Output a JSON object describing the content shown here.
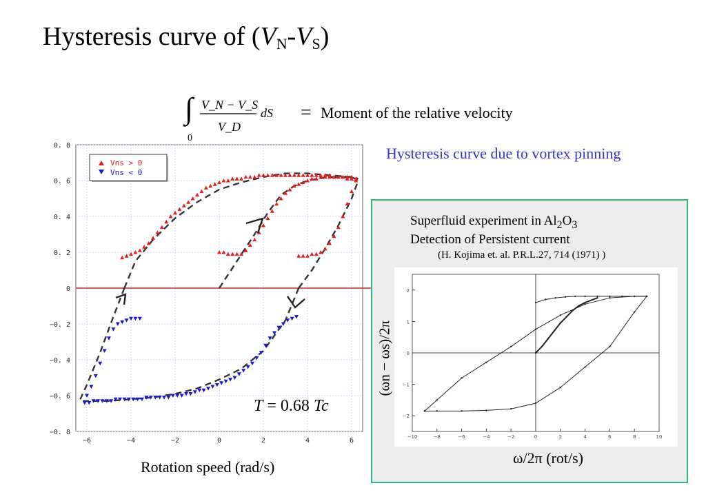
{
  "title": {
    "main": "Hysteresis curve of (",
    "v1": "V",
    "s1": "N",
    "dash": "-",
    "v2": "V",
    "s2": "S",
    "close": ")"
  },
  "formula": {
    "lower_limit": "0",
    "numerator": "V_N − V_S",
    "denominator": "V_D",
    "ds": "dS",
    "equals": "=",
    "text": "Moment of the relative velocity"
  },
  "subtitle": "Hysteresis curve due to vortex pinning",
  "temperature": {
    "var": "T",
    "eq": " = 0.68 ",
    "unit": "Tc"
  },
  "chart_data": [
    {
      "type": "scatter",
      "xlabel": "Rotation speed (rad/s)",
      "ylabel": "",
      "xlim": [
        -6.5,
        6.5
      ],
      "ylim": [
        -0.8,
        0.8
      ],
      "x_ticks": [
        -6,
        -4,
        -2,
        0,
        2,
        4,
        6
      ],
      "x_tick_labels": [
        "−6",
        "−4",
        "−2",
        "0",
        "2",
        "4",
        "6"
      ],
      "y_ticks": [
        -0.8,
        -0.6,
        -0.4,
        -0.2,
        0,
        0.2,
        0.4,
        0.6,
        0.8
      ],
      "y_tick_labels": [
        "−0. 8",
        "−0. 6",
        "−0. 4",
        "−0. 2",
        "0",
        "0. 2",
        "0. 4",
        "0. 6",
        "0. 8"
      ],
      "grid": true,
      "legend": "top-left",
      "zero_line_color": "#e02020",
      "series": [
        {
          "name": "Vns > 0",
          "marker": "triangle-up",
          "color": "#e02020",
          "x": [
            -4.4,
            -4.2,
            -4.0,
            -3.8,
            -3.6,
            -3.4,
            -3.2,
            -3.0,
            -2.8,
            -2.6,
            -2.4,
            -2.2,
            -2.0,
            -1.8,
            -1.6,
            -1.4,
            -1.2,
            -1.0,
            -0.8,
            -0.6,
            -0.4,
            -0.2,
            0.0,
            0.2,
            0.4,
            0.6,
            0.8,
            1.0,
            1.2,
            1.4,
            1.6,
            1.8,
            2.0,
            2.2,
            2.4,
            2.6,
            2.8,
            3.0,
            3.2,
            3.4,
            3.6,
            3.8,
            4.0,
            4.2,
            4.4,
            4.6,
            4.8,
            5.0,
            5.2,
            5.4,
            5.6,
            5.8,
            6.0,
            6.2
          ],
          "y": [
            0.17,
            0.18,
            0.19,
            0.2,
            0.21,
            0.23,
            0.25,
            0.28,
            0.31,
            0.34,
            0.37,
            0.4,
            0.42,
            0.44,
            0.46,
            0.48,
            0.5,
            0.52,
            0.54,
            0.56,
            0.57,
            0.58,
            0.59,
            0.6,
            0.6,
            0.61,
            0.61,
            0.61,
            0.62,
            0.62,
            0.62,
            0.63,
            0.63,
            0.63,
            0.63,
            0.63,
            0.63,
            0.63,
            0.63,
            0.63,
            0.63,
            0.63,
            0.63,
            0.63,
            0.63,
            0.63,
            0.63,
            0.63,
            0.62,
            0.62,
            0.62,
            0.61,
            0.61,
            0.61
          ]
        },
        {
          "name": "",
          "marker": "triangle-up",
          "color": "#e02020",
          "x": [
            0.0,
            0.2,
            0.4,
            0.6,
            0.8,
            1.0,
            1.2,
            1.4,
            1.6,
            1.8,
            2.0,
            2.2,
            2.4,
            2.6,
            2.8,
            3.0,
            3.2,
            3.4,
            3.6,
            3.8,
            4.0,
            4.2,
            4.4,
            4.6,
            4.8,
            5.0,
            5.2,
            5.4,
            5.6,
            5.8,
            6.0,
            6.2
          ],
          "y": [
            0.2,
            0.2,
            0.19,
            0.19,
            0.19,
            0.19,
            0.21,
            0.24,
            0.27,
            0.31,
            0.35,
            0.39,
            0.43,
            0.47,
            0.5,
            0.53,
            0.55,
            0.57,
            0.58,
            0.59,
            0.6,
            0.61,
            0.61,
            0.62,
            0.62,
            0.62,
            0.62,
            0.62,
            0.62,
            0.62,
            0.62,
            0.61
          ]
        },
        {
          "name": "",
          "marker": "triangle-up",
          "color": "#e02020",
          "x": [
            3.6,
            3.8,
            4.0,
            4.2,
            4.4,
            4.6,
            4.8,
            5.0,
            5.2,
            5.4,
            5.6,
            5.8,
            6.0,
            6.2
          ],
          "y": [
            0.18,
            0.18,
            0.18,
            0.19,
            0.19,
            0.2,
            0.22,
            0.25,
            0.29,
            0.34,
            0.4,
            0.47,
            0.54,
            0.6
          ]
        },
        {
          "name": "Vns < 0",
          "marker": "triangle-down",
          "color": "#1a1ad0",
          "x": [
            3.5,
            3.3,
            3.1,
            2.9,
            2.7,
            2.5,
            2.3,
            2.1,
            1.9,
            1.7,
            1.5,
            1.3,
            1.1,
            0.9,
            0.7,
            0.5,
            0.3,
            0.1,
            -0.1,
            -0.3,
            -0.5,
            -0.7,
            -0.9,
            -1.1,
            -1.3,
            -1.5,
            -1.7,
            -1.9,
            -2.1,
            -2.3,
            -2.5,
            -2.7,
            -2.9,
            -3.1,
            -3.3,
            -3.5,
            -3.7,
            -3.9,
            -4.1,
            -4.3,
            -4.5,
            -4.7,
            -4.9,
            -5.1,
            -5.3,
            -5.5,
            -5.7,
            -5.9,
            -6.1
          ],
          "y": [
            -0.16,
            -0.17,
            -0.18,
            -0.2,
            -0.22,
            -0.25,
            -0.28,
            -0.32,
            -0.36,
            -0.39,
            -0.42,
            -0.44,
            -0.46,
            -0.48,
            -0.5,
            -0.51,
            -0.52,
            -0.53,
            -0.54,
            -0.55,
            -0.56,
            -0.57,
            -0.57,
            -0.58,
            -0.59,
            -0.59,
            -0.6,
            -0.6,
            -0.6,
            -0.61,
            -0.61,
            -0.61,
            -0.61,
            -0.61,
            -0.61,
            -0.62,
            -0.62,
            -0.62,
            -0.62,
            -0.62,
            -0.62,
            -0.62,
            -0.63,
            -0.63,
            -0.63,
            -0.63,
            -0.63,
            -0.64,
            -0.64
          ]
        },
        {
          "name": "",
          "marker": "triangle-down",
          "color": "#1a1ad0",
          "x": [
            -3.6,
            -3.8,
            -4.0,
            -4.2,
            -4.4,
            -4.6,
            -4.8,
            -5.0,
            -5.2,
            -5.4,
            -5.6,
            -5.8,
            -6.0
          ],
          "y": [
            -0.17,
            -0.17,
            -0.17,
            -0.18,
            -0.19,
            -0.2,
            -0.23,
            -0.28,
            -0.35,
            -0.42,
            -0.49,
            -0.55,
            -0.6
          ]
        }
      ],
      "fit_curves": [
        {
          "style": "dashed",
          "x": [
            -4.3,
            -3.8,
            -3.0,
            -2.0,
            -1.0,
            0.0,
            1.0,
            2.0,
            3.0,
            4.0,
            5.0,
            6.0,
            6.3
          ],
          "y": [
            0.0,
            0.15,
            0.27,
            0.39,
            0.48,
            0.55,
            0.59,
            0.62,
            0.64,
            0.64,
            0.63,
            0.62,
            0.61
          ]
        },
        {
          "style": "dashed",
          "x": [
            0.0,
            0.8,
            1.6,
            2.2,
            2.8,
            3.4,
            4.0,
            5.0,
            6.0,
            6.3
          ],
          "y": [
            0.0,
            0.15,
            0.3,
            0.42,
            0.52,
            0.57,
            0.6,
            0.62,
            0.62,
            0.6
          ]
        },
        {
          "style": "dashed",
          "x": [
            3.6,
            4.2,
            4.8,
            5.4,
            6.0,
            6.3
          ],
          "y": [
            0.0,
            0.1,
            0.22,
            0.35,
            0.5,
            0.6
          ]
        },
        {
          "style": "dashed",
          "x": [
            3.6,
            3.0,
            2.0,
            1.0,
            0.0,
            -1.0,
            -2.0,
            -3.0,
            -4.0,
            -5.0,
            -6.0,
            -6.3
          ],
          "y": [
            0.0,
            -0.18,
            -0.35,
            -0.45,
            -0.51,
            -0.56,
            -0.59,
            -0.61,
            -0.62,
            -0.63,
            -0.63,
            -0.63
          ]
        },
        {
          "style": "dashed",
          "x": [
            -4.3,
            -4.8,
            -5.4,
            -6.0,
            -6.3
          ],
          "y": [
            0.0,
            -0.16,
            -0.36,
            -0.54,
            -0.62
          ]
        }
      ]
    },
    {
      "type": "line",
      "xlabel": "ω/2π (rot/s)",
      "ylabel": "(ωn − ωs)/2π",
      "xlim": [
        -10,
        10
      ],
      "ylim": [
        -2.5,
        2.5
      ],
      "x_ticks": [
        -10,
        -8,
        -6,
        -4,
        -2,
        0,
        2,
        4,
        6,
        8,
        10
      ],
      "x_tick_labels": [
        "−10",
        "−8",
        "−6",
        "−4",
        "−2",
        "0",
        "2",
        "4",
        "6",
        "8",
        "10"
      ],
      "y_ticks": [
        -2,
        -1,
        0,
        1,
        2
      ],
      "y_tick_labels": [
        "−2",
        "−1",
        "0",
        "1",
        "2"
      ],
      "grid": false,
      "series": [
        {
          "name": "",
          "x": [
            -9.0,
            -8.0,
            -6.0,
            -4.0,
            -2.0,
            0.0,
            2.0,
            4.0,
            6.0,
            8.0,
            9.0
          ],
          "y": [
            -1.85,
            -1.5,
            -0.8,
            -0.3,
            0.2,
            0.75,
            1.2,
            1.55,
            1.75,
            1.8,
            1.8
          ]
        },
        {
          "name": "",
          "x": [
            9.0,
            8.0,
            6.0,
            4.0,
            2.0,
            0.0,
            -2.0,
            -4.0,
            -6.0,
            -8.0,
            -9.0
          ],
          "y": [
            1.8,
            1.3,
            0.2,
            -0.45,
            -1.1,
            -1.6,
            -1.78,
            -1.83,
            -1.85,
            -1.85,
            -1.85
          ]
        },
        {
          "name": "",
          "x": [
            0.0,
            0.8,
            1.6,
            2.4,
            3.2,
            4.0,
            5.0,
            6.0,
            7.0,
            8.0,
            9.0
          ],
          "y": [
            1.6,
            1.7,
            1.75,
            1.78,
            1.8,
            1.8,
            1.8,
            1.8,
            1.8,
            1.8,
            1.8
          ]
        },
        {
          "name": "",
          "x": [
            0.0,
            0.5,
            1.0,
            1.5,
            2.0,
            2.5,
            3.0,
            3.5,
            4.0,
            5.0
          ],
          "y": [
            0.0,
            0.2,
            0.45,
            0.7,
            0.95,
            1.15,
            1.35,
            1.5,
            1.6,
            1.75
          ]
        }
      ]
    }
  ],
  "inset": {
    "line1_a": "Superfluid experiment in Al",
    "line1_sub1": "2",
    "line1_b": "O",
    "line1_sub2": "3",
    "line2": "Detection of Persistent current",
    "ref": "(H. Kojima et. al. P.R.L.27, 714 (1971) )"
  }
}
